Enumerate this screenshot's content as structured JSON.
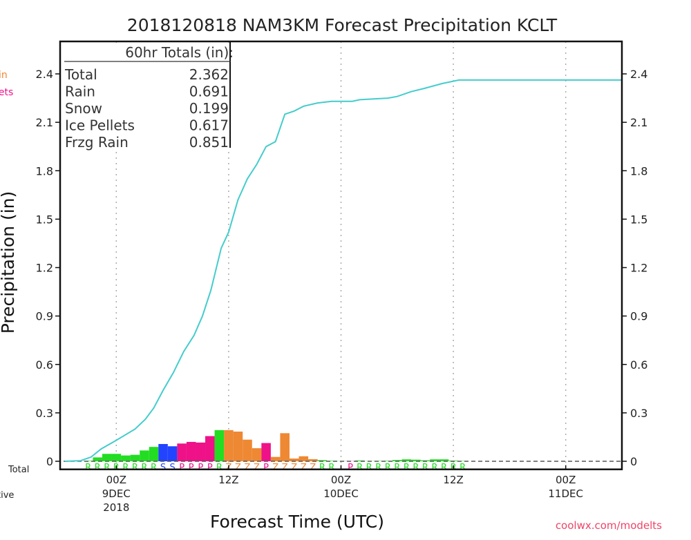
{
  "chart_data": {
    "type": "bar",
    "title": "2018120818 NAM3KM Forecast Precipitation KCLT",
    "xlabel": "Forecast Time (UTC)",
    "ylabel": "Precipitation (in)",
    "x_units": "hours since 2018-12-08 18Z",
    "xlim": [
      0,
      60
    ],
    "ylim": [
      -0.05,
      2.6
    ],
    "y_ticks": [
      0,
      0.3,
      0.6,
      0.9,
      1.2,
      1.5,
      1.8,
      2.1,
      2.4
    ],
    "y_tick_labels": [
      "0",
      "0.3",
      "0.6",
      "0.9",
      "1.2",
      "1.5",
      "1.8",
      "2.1",
      "2.4"
    ],
    "x_ticks": [
      {
        "hour": 6,
        "label": "00Z",
        "date": "9DEC",
        "year": "2018"
      },
      {
        "hour": 18,
        "label": "12Z",
        "date": "",
        "year": ""
      },
      {
        "hour": 30,
        "label": "00Z",
        "date": "10DEC",
        "year": ""
      },
      {
        "hour": 42,
        "label": "12Z",
        "date": "",
        "year": ""
      },
      {
        "hour": 54,
        "label": "00Z",
        "date": "11DEC",
        "year": ""
      }
    ],
    "grid": "vertical dotted at tick hours",
    "type_colors": {
      "R": "#22dd22",
      "S": "#2244ff",
      "P": "#ee1188",
      "Z": "#ee8833"
    },
    "hourly": {
      "hours": [
        3,
        4,
        5,
        6,
        7,
        8,
        9,
        10,
        11,
        12,
        13,
        14,
        15,
        16,
        17,
        18,
        19,
        20,
        21,
        22,
        23,
        24,
        25,
        26,
        27,
        28,
        29,
        30,
        31,
        32,
        33,
        34,
        35,
        36,
        37,
        38,
        39,
        40,
        41,
        42,
        43
      ],
      "values": [
        0.003,
        0.024,
        0.046,
        0.046,
        0.036,
        0.04,
        0.067,
        0.089,
        0.107,
        0.093,
        0.11,
        0.12,
        0.116,
        0.156,
        0.193,
        0.193,
        0.184,
        0.134,
        0.081,
        0.113,
        0.027,
        0.174,
        0.017,
        0.031,
        0.013,
        0.007,
        0.003,
        0.001,
        0.001,
        0.005,
        0.001,
        0.002,
        0.003,
        0.008,
        0.012,
        0.01,
        0.006,
        0.012,
        0.012,
        0.004,
        0.002
      ],
      "types": [
        "R",
        "R",
        "R",
        "R",
        "R",
        "R",
        "R",
        "R",
        "S",
        "S",
        "P",
        "P",
        "P",
        "P",
        "R",
        "Z",
        "Z",
        "Z",
        "Z",
        "P",
        "Z",
        "Z",
        "Z",
        "Z",
        "Z",
        "R",
        "R",
        "",
        "P",
        "R",
        "R",
        "R",
        "R",
        "R",
        "R",
        "R",
        "R",
        "R",
        "R",
        "R",
        "R"
      ]
    },
    "cumulative": {
      "name": "Total",
      "color": "#44cccc",
      "hours": [
        0.5,
        2.2,
        3.3,
        4.4,
        6,
        8,
        9.1,
        10,
        11,
        12.1,
        13.2,
        14.3,
        15.2,
        16.1,
        17.2,
        18,
        19,
        20,
        21,
        22,
        23,
        24,
        25,
        26,
        27.5,
        29,
        31.2,
        32,
        35,
        36,
        37.5,
        38.9,
        40.8,
        42.6,
        60
      ],
      "values": [
        0,
        0.004,
        0.026,
        0.077,
        0.13,
        0.2,
        0.26,
        0.33,
        0.44,
        0.55,
        0.68,
        0.78,
        0.9,
        1.06,
        1.32,
        1.42,
        1.62,
        1.75,
        1.84,
        1.95,
        1.98,
        2.15,
        2.17,
        2.2,
        2.22,
        2.23,
        2.23,
        2.24,
        2.25,
        2.26,
        2.29,
        2.31,
        2.34,
        2.362,
        2.362
      ]
    }
  },
  "totals_box": {
    "title": "60hr Totals (in):",
    "rows": [
      {
        "label": "Total",
        "value": "2.362"
      },
      {
        "label": "Rain",
        "value": "0.691"
      },
      {
        "label": "Snow",
        "value": "0.199"
      },
      {
        "label": "Ice Pellets",
        "value": "0.617"
      },
      {
        "label": "Frzg Rain",
        "value": "0.851"
      }
    ]
  },
  "cropped_legend": {
    "frzg_rain_fragment": "in",
    "ice_pellets_fragment": "lets",
    "total_fragment": "Total",
    "cumulative_fragment": "tive"
  },
  "credit": "coolwx.com/modelts"
}
